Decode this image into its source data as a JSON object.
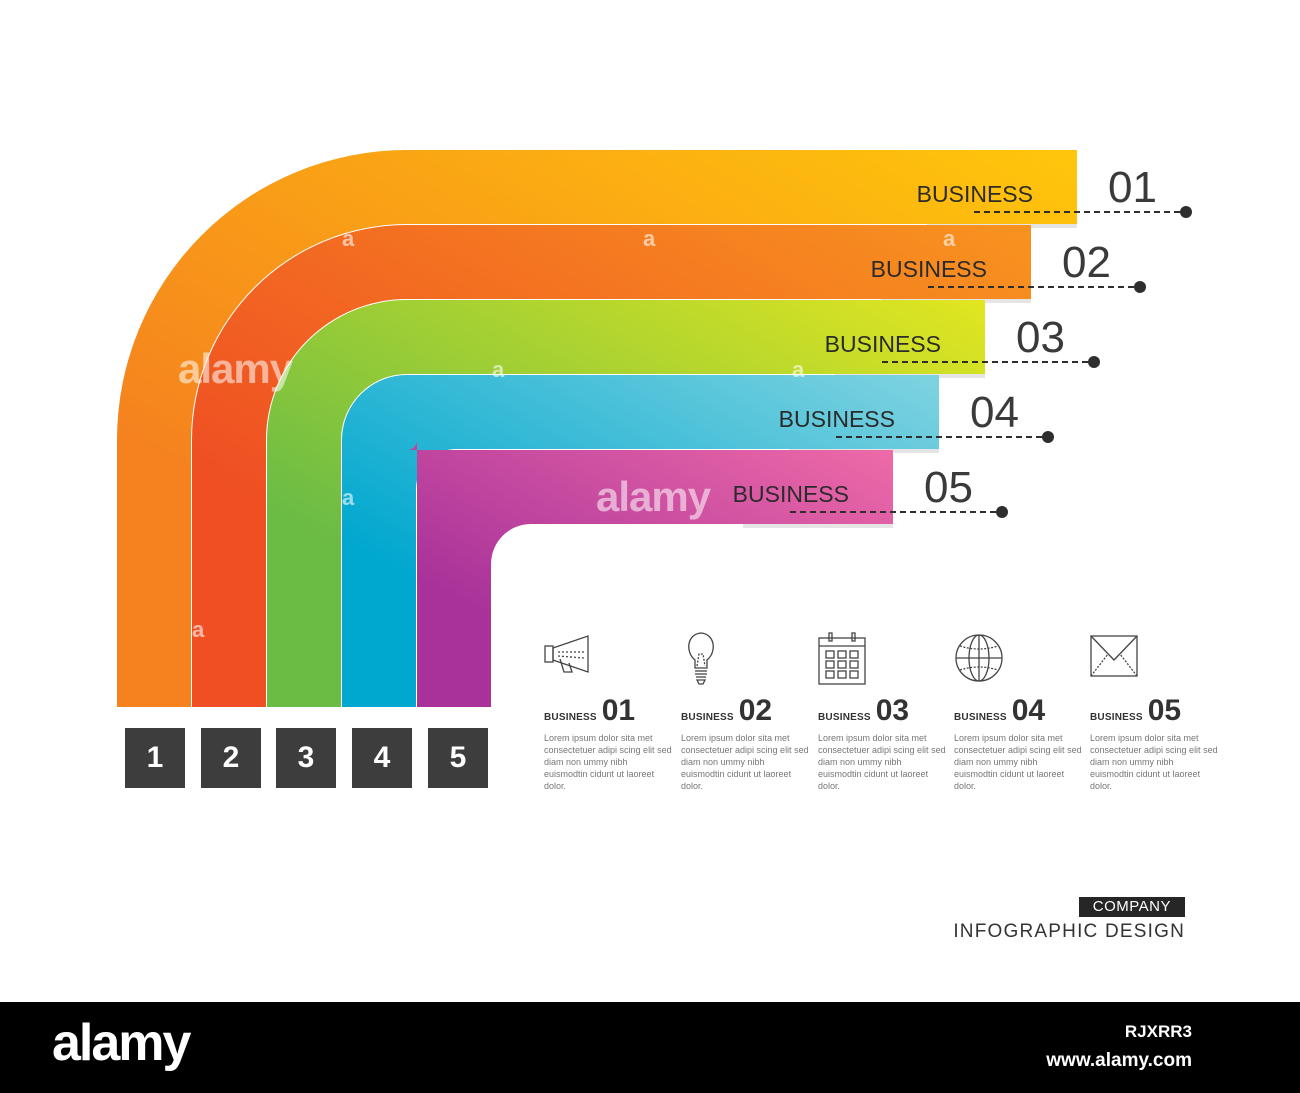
{
  "diagram": {
    "bands": [
      {
        "label": "BUSINESS",
        "number": "01",
        "color_light": "#ffc60b",
        "color_dark": "#f5821f"
      },
      {
        "label": "BUSINESS",
        "number": "02",
        "color_light": "#f8931f",
        "color_dark": "#ef4f23"
      },
      {
        "label": "BUSINESS",
        "number": "03",
        "color_light": "#e2e620",
        "color_dark": "#6bbc45"
      },
      {
        "label": "BUSINESS",
        "number": "04",
        "color_light": "#7fd3e0",
        "color_dark": "#00a7cf"
      },
      {
        "label": "BUSINESS",
        "number": "05",
        "color_light": "#f06ca8",
        "color_dark": "#a8329a"
      }
    ],
    "step_boxes": [
      "1",
      "2",
      "3",
      "4",
      "5"
    ]
  },
  "columns": [
    {
      "title": "BUSINESS",
      "number": "01",
      "icon": "megaphone-icon",
      "text": "Lorem ipsum dolor sita met consectetuer adipi scing elit sed diam non ummy nibh euismodtin cidunt ut laoreet dolor."
    },
    {
      "title": "BUSINESS",
      "number": "02",
      "icon": "light-bulb-icon",
      "text": "Lorem ipsum dolor sita met consectetuer adipi scing elit sed diam non ummy nibh euismodtin cidunt ut laoreet dolor."
    },
    {
      "title": "BUSINESS",
      "number": "03",
      "icon": "calendar-icon",
      "text": "Lorem ipsum dolor sita met consectetuer adipi scing elit sed diam non ummy nibh euismodtin cidunt ut laoreet dolor."
    },
    {
      "title": "BUSINESS",
      "number": "04",
      "icon": "globe-icon",
      "text": "Lorem ipsum dolor sita met consectetuer adipi scing elit sed diam non ummy nibh euismodtin cidunt ut laoreet dolor."
    },
    {
      "title": "BUSINESS",
      "number": "05",
      "icon": "envelope-icon",
      "text": "Lorem ipsum dolor sita met consectetuer adipi scing elit sed diam non ummy nibh euismodtin cidunt ut laoreet dolor."
    }
  ],
  "brand": {
    "company": "COMPANY",
    "subtitle": "INFOGRAPHIC DESIGN"
  },
  "watermark": {
    "word": "alamy",
    "letter": "a"
  },
  "footer": {
    "logo": "alamy",
    "image_id": "RJXRR3",
    "site": "www.alamy.com"
  }
}
